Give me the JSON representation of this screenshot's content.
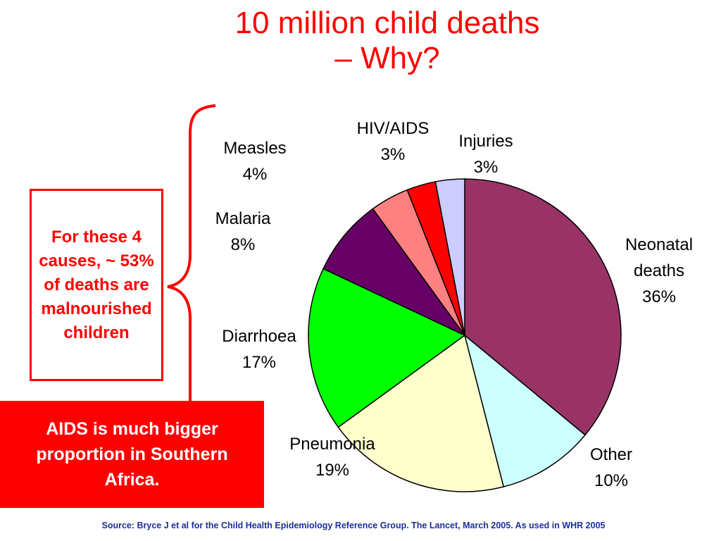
{
  "title": {
    "line1": "10 million child deaths",
    "line2": "– Why?"
  },
  "callout": {
    "text": "For these 4 causes, ~ 53% of deaths are malnourished children"
  },
  "banner": {
    "text": "AIDS is much bigger proportion in Southern Africa."
  },
  "source": {
    "text": "Source: Bryce J et al for the Child Health Epidemiology Reference Group. The Lancet, March 2005. As used in WHR 2005"
  },
  "colors": {
    "accent": "#ff0000",
    "source_text": "#1b2f9c"
  },
  "chart_data": {
    "type": "pie",
    "title": "",
    "start": "12 o'clock, clockwise",
    "slices": [
      {
        "label": "Neonatal deaths",
        "value": 36,
        "value_label": "36%",
        "color": "#993366"
      },
      {
        "label": "Other",
        "value": 10,
        "value_label": "10%",
        "color": "#ccffff"
      },
      {
        "label": "Pneumonia",
        "value": 19,
        "value_label": "19%",
        "color": "#ffffcc"
      },
      {
        "label": "Diarrhoea",
        "value": 17,
        "value_label": "17%",
        "color": "#00ff00"
      },
      {
        "label": "Malaria",
        "value": 8,
        "value_label": "8%",
        "color": "#660066"
      },
      {
        "label": "Measles",
        "value": 4,
        "value_label": "4%",
        "color": "#ff8080"
      },
      {
        "label": "HIV/AIDS",
        "value": 3,
        "value_label": "3%",
        "color": "#ff0000"
      },
      {
        "label": "Injuries",
        "value": 3,
        "value_label": "3%",
        "color": "#ccccff"
      }
    ]
  }
}
